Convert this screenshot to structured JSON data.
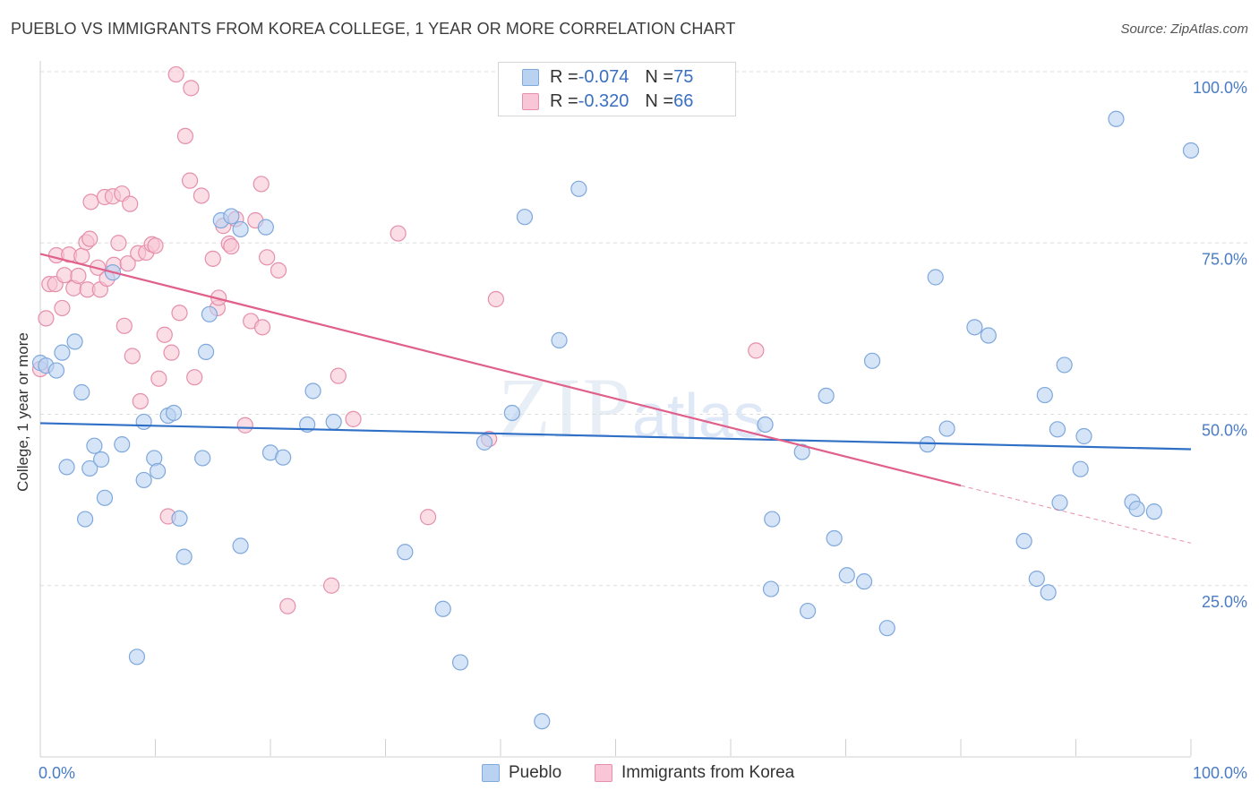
{
  "title": "PUEBLO VS IMMIGRANTS FROM KOREA COLLEGE, 1 YEAR OR MORE CORRELATION CHART",
  "source": "Source: ZipAtlas.com",
  "watermark": {
    "zip": "ZIP",
    "atlas": "atlas"
  },
  "legend": {
    "rows": [
      {
        "r_label": "R = ",
        "r_value": "-0.074",
        "n_label": "N = ",
        "n_value": "75"
      },
      {
        "r_label": "R = ",
        "r_value": "-0.320",
        "n_label": "N = ",
        "n_value": "66"
      }
    ]
  },
  "chart_data": {
    "type": "scatter",
    "title": "PUEBLO VS IMMIGRANTS FROM KOREA COLLEGE, 1 YEAR OR MORE CORRELATION CHART",
    "xlabel": "",
    "ylabel": "College, 1 year or more",
    "xlim": [
      0,
      100
    ],
    "ylim": [
      0,
      100
    ],
    "x_tick_labels": [
      "0.0%",
      "100.0%"
    ],
    "y_ticks": [
      25,
      50,
      75,
      100
    ],
    "y_tick_labels": [
      "25.0%",
      "50.0%",
      "75.0%",
      "100.0%"
    ],
    "grid": "horizontal dashed",
    "legend_position": "top-center",
    "colors": {
      "pueblo_fill": "#b9d2f2",
      "pueblo_stroke": "#7fa8dc",
      "pueblo_line": "#2f6fc6",
      "korea_fill": "#f8c6d6",
      "korea_stroke": "#e58fab",
      "korea_line": "#e0608a"
    },
    "series": [
      {
        "name": "Pueblo",
        "r": -0.074,
        "n": 75,
        "trend": {
          "x": [
            0,
            100
          ],
          "y": [
            48.7,
            44.9
          ]
        },
        "points": [
          [
            0.0,
            57.5
          ],
          [
            0.5,
            57.1
          ],
          [
            1.4,
            56.4
          ],
          [
            1.9,
            59.0
          ],
          [
            2.3,
            42.3
          ],
          [
            3.0,
            60.6
          ],
          [
            3.6,
            53.2
          ],
          [
            3.9,
            34.7
          ],
          [
            4.3,
            42.1
          ],
          [
            4.7,
            45.4
          ],
          [
            5.3,
            43.4
          ],
          [
            5.6,
            37.8
          ],
          [
            6.3,
            70.7
          ],
          [
            7.1,
            45.6
          ],
          [
            8.4,
            14.6
          ],
          [
            9.0,
            48.9
          ],
          [
            9.0,
            40.4
          ],
          [
            9.9,
            43.6
          ],
          [
            10.2,
            41.7
          ],
          [
            11.1,
            49.8
          ],
          [
            11.6,
            50.2
          ],
          [
            12.1,
            34.8
          ],
          [
            12.5,
            29.2
          ],
          [
            14.1,
            43.6
          ],
          [
            14.4,
            59.1
          ],
          [
            14.7,
            64.6
          ],
          [
            15.7,
            78.3
          ],
          [
            16.6,
            78.9
          ],
          [
            17.4,
            77.0
          ],
          [
            17.4,
            30.8
          ],
          [
            19.6,
            77.3
          ],
          [
            20.0,
            44.4
          ],
          [
            21.1,
            43.7
          ],
          [
            23.2,
            48.5
          ],
          [
            23.7,
            53.4
          ],
          [
            25.5,
            48.9
          ],
          [
            31.7,
            29.9
          ],
          [
            35.0,
            21.6
          ],
          [
            36.5,
            13.8
          ],
          [
            38.6,
            45.9
          ],
          [
            41.0,
            50.2
          ],
          [
            42.1,
            78.8
          ],
          [
            43.6,
            5.2
          ],
          [
            45.1,
            60.8
          ],
          [
            46.8,
            82.9
          ],
          [
            63.0,
            48.5
          ],
          [
            63.6,
            34.7
          ],
          [
            63.5,
            24.5
          ],
          [
            66.2,
            44.5
          ],
          [
            66.7,
            21.3
          ],
          [
            68.3,
            52.7
          ],
          [
            69.0,
            31.9
          ],
          [
            70.1,
            26.5
          ],
          [
            71.6,
            25.6
          ],
          [
            72.3,
            57.8
          ],
          [
            73.6,
            18.8
          ],
          [
            77.1,
            45.6
          ],
          [
            77.8,
            70.0
          ],
          [
            78.8,
            47.9
          ],
          [
            81.2,
            62.7
          ],
          [
            82.4,
            61.5
          ],
          [
            85.5,
            31.5
          ],
          [
            86.6,
            26.0
          ],
          [
            87.3,
            52.8
          ],
          [
            87.6,
            24.0
          ],
          [
            88.4,
            47.8
          ],
          [
            88.6,
            37.1
          ],
          [
            89.0,
            57.2
          ],
          [
            90.4,
            42.0
          ],
          [
            90.7,
            46.8
          ],
          [
            93.5,
            93.1
          ],
          [
            94.9,
            37.2
          ],
          [
            95.3,
            36.2
          ],
          [
            96.8,
            35.8
          ],
          [
            100.0,
            88.5
          ]
        ]
      },
      {
        "name": "Immigrants from Korea",
        "r": -0.32,
        "n": 66,
        "trend": {
          "x": [
            0,
            80
          ],
          "y": [
            73.4,
            39.6
          ]
        },
        "trend_dashed": {
          "x": [
            80,
            100
          ],
          "y": [
            39.6,
            31.2
          ]
        },
        "points": [
          [
            0.0,
            56.6
          ],
          [
            0.5,
            64.0
          ],
          [
            0.8,
            69.0
          ],
          [
            1.3,
            69.0
          ],
          [
            1.4,
            73.2
          ],
          [
            1.9,
            65.5
          ],
          [
            2.1,
            70.3
          ],
          [
            2.5,
            73.3
          ],
          [
            2.9,
            68.4
          ],
          [
            3.3,
            70.2
          ],
          [
            3.6,
            73.1
          ],
          [
            4.0,
            75.1
          ],
          [
            4.1,
            68.2
          ],
          [
            4.3,
            75.6
          ],
          [
            4.4,
            81.0
          ],
          [
            5.0,
            71.4
          ],
          [
            5.2,
            68.2
          ],
          [
            5.6,
            81.7
          ],
          [
            5.8,
            69.8
          ],
          [
            6.3,
            81.8
          ],
          [
            6.4,
            71.8
          ],
          [
            6.8,
            75.0
          ],
          [
            7.1,
            82.2
          ],
          [
            7.3,
            62.9
          ],
          [
            7.6,
            72.0
          ],
          [
            7.8,
            80.7
          ],
          [
            8.0,
            58.5
          ],
          [
            8.5,
            73.5
          ],
          [
            8.7,
            51.9
          ],
          [
            9.2,
            73.6
          ],
          [
            9.7,
            74.8
          ],
          [
            10.0,
            74.6
          ],
          [
            10.3,
            55.2
          ],
          [
            10.8,
            61.6
          ],
          [
            11.1,
            35.1
          ],
          [
            11.4,
            59.0
          ],
          [
            11.8,
            99.6
          ],
          [
            12.1,
            64.8
          ],
          [
            12.6,
            90.6
          ],
          [
            13.1,
            97.6
          ],
          [
            13.0,
            84.1
          ],
          [
            13.4,
            55.4
          ],
          [
            14.0,
            81.9
          ],
          [
            15.0,
            72.7
          ],
          [
            15.4,
            65.5
          ],
          [
            15.5,
            67.0
          ],
          [
            15.9,
            77.5
          ],
          [
            16.4,
            74.9
          ],
          [
            16.6,
            74.5
          ],
          [
            17.0,
            78.5
          ],
          [
            17.8,
            48.4
          ],
          [
            18.3,
            63.6
          ],
          [
            18.7,
            78.3
          ],
          [
            19.2,
            83.6
          ],
          [
            19.3,
            62.7
          ],
          [
            19.7,
            72.9
          ],
          [
            20.7,
            71.0
          ],
          [
            21.5,
            22.0
          ],
          [
            25.3,
            25.0
          ],
          [
            25.9,
            55.6
          ],
          [
            27.2,
            49.3
          ],
          [
            31.1,
            76.4
          ],
          [
            33.7,
            35.0
          ],
          [
            39.0,
            46.4
          ],
          [
            39.6,
            66.8
          ],
          [
            62.2,
            59.3
          ]
        ]
      }
    ]
  },
  "bottom_legend": {
    "pueblo": "Pueblo",
    "korea": "Immigrants from Korea"
  }
}
